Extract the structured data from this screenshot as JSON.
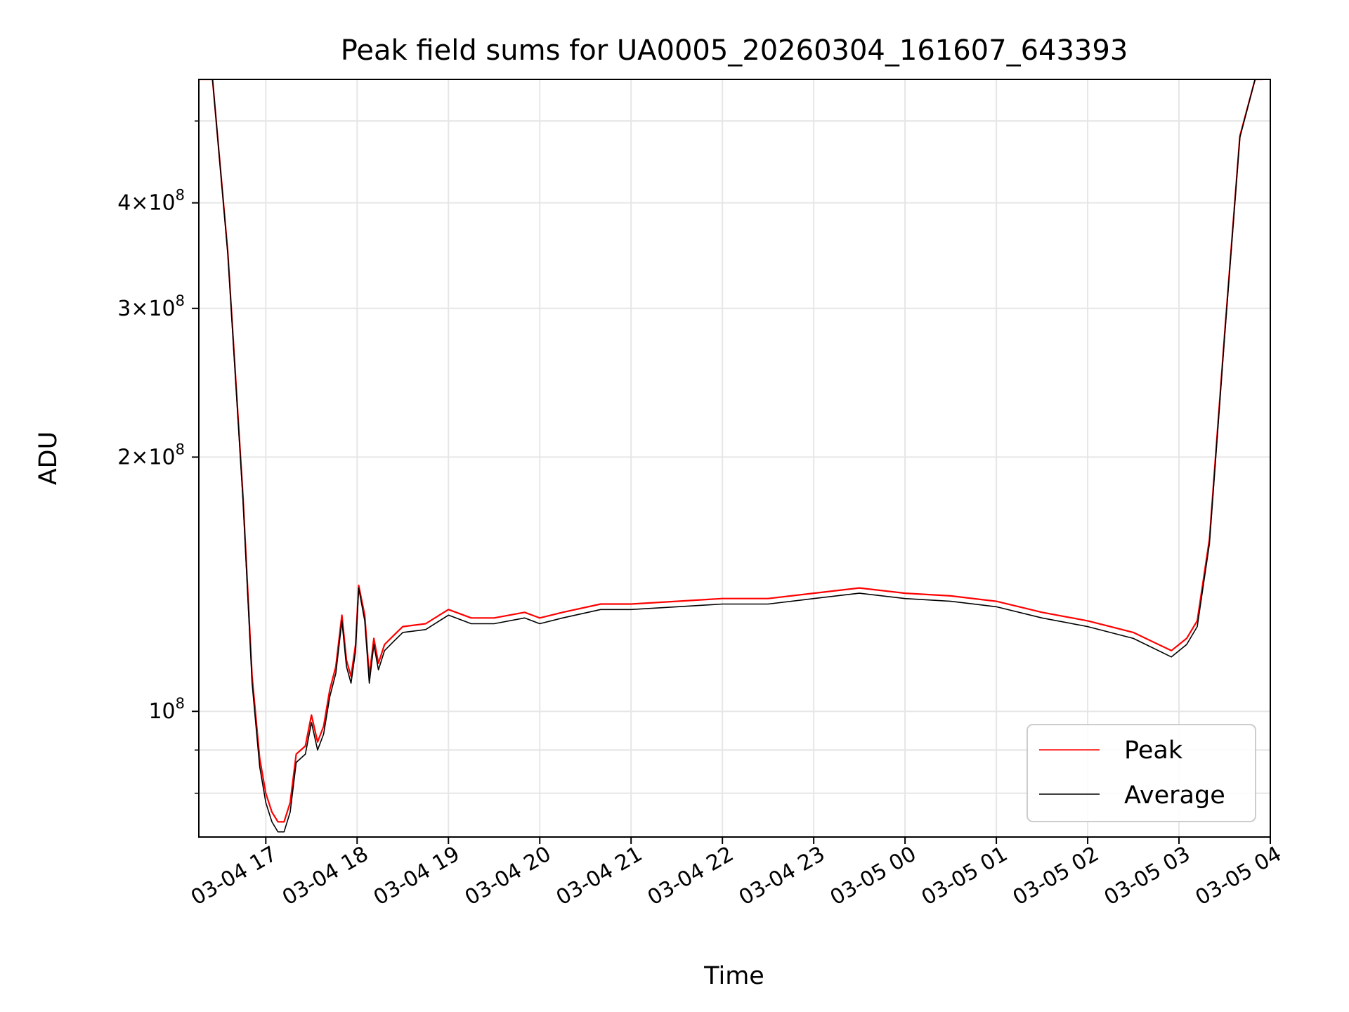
{
  "chart_data": {
    "type": "line",
    "title": "Peak field sums for UA0005_20260304_161607_643393",
    "xlabel": "Time",
    "ylabel": "ADU",
    "x_axis": "time",
    "y_scale": "log",
    "xlim": [
      "2026-03-04 16:16",
      "2026-03-05 04:00"
    ],
    "ylim": [
      71000000,
      560000000
    ],
    "x_ticks": [
      "03-04 17",
      "03-04 18",
      "03-04 19",
      "03-04 20",
      "03-04 21",
      "03-04 22",
      "03-04 23",
      "03-05 00",
      "03-05 01",
      "03-05 02",
      "03-05 03",
      "03-05 04"
    ],
    "x_tick_values": [
      "2026-03-04 17:00",
      "2026-03-04 18:00",
      "2026-03-04 19:00",
      "2026-03-04 20:00",
      "2026-03-04 21:00",
      "2026-03-04 22:00",
      "2026-03-04 23:00",
      "2026-03-05 00:00",
      "2026-03-05 01:00",
      "2026-03-05 02:00",
      "2026-03-05 03:00",
      "2026-03-05 04:00"
    ],
    "y_ticks": [
      {
        "value": 400000000,
        "mant": "4",
        "exp": "8"
      },
      {
        "value": 300000000,
        "mant": "3",
        "exp": "8"
      },
      {
        "value": 200000000,
        "mant": "2",
        "exp": "8"
      },
      {
        "value": 100000000,
        "mant": "",
        "exp": "8"
      }
    ],
    "y_minor_ticks": [
      80000000,
      90000000,
      500000000
    ],
    "grid": true,
    "legend": {
      "position": "lower-right",
      "entries": [
        "Peak",
        "Average"
      ]
    },
    "series": [
      {
        "name": "Peak",
        "color": "#ff0000",
        "x": [
          "2026-03-04 16:16",
          "2026-03-04 16:25",
          "2026-03-04 16:35",
          "2026-03-04 16:45",
          "2026-03-04 16:51",
          "2026-03-04 16:56",
          "2026-03-04 17:00",
          "2026-03-04 17:04",
          "2026-03-04 17:08",
          "2026-03-04 17:12",
          "2026-03-04 17:16",
          "2026-03-04 17:20",
          "2026-03-04 17:26",
          "2026-03-04 17:30",
          "2026-03-04 17:34",
          "2026-03-04 17:38",
          "2026-03-04 17:42",
          "2026-03-04 17:46",
          "2026-03-04 17:50",
          "2026-03-04 17:53",
          "2026-03-04 17:56",
          "2026-03-04 17:59",
          "2026-03-04 18:01",
          "2026-03-04 18:05",
          "2026-03-04 18:08",
          "2026-03-04 18:11",
          "2026-03-04 18:14",
          "2026-03-04 18:18",
          "2026-03-04 18:24",
          "2026-03-04 18:30",
          "2026-03-04 18:45",
          "2026-03-04 19:00",
          "2026-03-04 19:15",
          "2026-03-04 19:30",
          "2026-03-04 19:50",
          "2026-03-04 20:00",
          "2026-03-04 20:15",
          "2026-03-04 20:40",
          "2026-03-04 21:00",
          "2026-03-04 21:30",
          "2026-03-04 22:00",
          "2026-03-04 22:30",
          "2026-03-04 23:00",
          "2026-03-04 23:30",
          "2026-03-05 00:00",
          "2026-03-05 00:30",
          "2026-03-05 01:00",
          "2026-03-05 01:30",
          "2026-03-05 02:00",
          "2026-03-05 02:30",
          "2026-03-05 02:55",
          "2026-03-05 03:05",
          "2026-03-05 03:12",
          "2026-03-05 03:20",
          "2026-03-05 03:30",
          "2026-03-05 03:40",
          "2026-03-05 03:50",
          "2026-03-05 03:55"
        ],
        "values": [
          560000000,
          560000000,
          350000000,
          180000000,
          110000000,
          88000000,
          80000000,
          76000000,
          74000000,
          74000000,
          78000000,
          89000000,
          91000000,
          99000000,
          92000000,
          96000000,
          106000000,
          113000000,
          130000000,
          115000000,
          110000000,
          120000000,
          141000000,
          130000000,
          110000000,
          122000000,
          114000000,
          120000000,
          123000000,
          126000000,
          127000000,
          132000000,
          129000000,
          129000000,
          131000000,
          129000000,
          131000000,
          134000000,
          134000000,
          135000000,
          136000000,
          136000000,
          138000000,
          140000000,
          138000000,
          137000000,
          135000000,
          131000000,
          128000000,
          124000000,
          118000000,
          122000000,
          128000000,
          160000000,
          280000000,
          480000000,
          560000000,
          560000000
        ]
      },
      {
        "name": "Average",
        "color": "#000000",
        "x": [
          "2026-03-04 16:16",
          "2026-03-04 16:25",
          "2026-03-04 16:35",
          "2026-03-04 16:45",
          "2026-03-04 16:51",
          "2026-03-04 16:56",
          "2026-03-04 17:00",
          "2026-03-04 17:04",
          "2026-03-04 17:08",
          "2026-03-04 17:12",
          "2026-03-04 17:16",
          "2026-03-04 17:20",
          "2026-03-04 17:26",
          "2026-03-04 17:30",
          "2026-03-04 17:34",
          "2026-03-04 17:38",
          "2026-03-04 17:42",
          "2026-03-04 17:46",
          "2026-03-04 17:50",
          "2026-03-04 17:53",
          "2026-03-04 17:56",
          "2026-03-04 17:59",
          "2026-03-04 18:01",
          "2026-03-04 18:05",
          "2026-03-04 18:08",
          "2026-03-04 18:11",
          "2026-03-04 18:14",
          "2026-03-04 18:18",
          "2026-03-04 18:24",
          "2026-03-04 18:30",
          "2026-03-04 18:45",
          "2026-03-04 19:00",
          "2026-03-04 19:15",
          "2026-03-04 19:30",
          "2026-03-04 19:50",
          "2026-03-04 20:00",
          "2026-03-04 20:15",
          "2026-03-04 20:40",
          "2026-03-04 21:00",
          "2026-03-04 21:30",
          "2026-03-04 22:00",
          "2026-03-04 22:30",
          "2026-03-04 23:00",
          "2026-03-04 23:30",
          "2026-03-05 00:00",
          "2026-03-05 00:30",
          "2026-03-05 01:00",
          "2026-03-05 01:30",
          "2026-03-05 02:00",
          "2026-03-05 02:30",
          "2026-03-05 02:55",
          "2026-03-05 03:05",
          "2026-03-05 03:12",
          "2026-03-05 03:20",
          "2026-03-05 03:30",
          "2026-03-05 03:40",
          "2026-03-05 03:50",
          "2026-03-05 03:55"
        ],
        "values": [
          560000000,
          560000000,
          348000000,
          178000000,
          108000000,
          86000000,
          78000000,
          74000000,
          72000000,
          72000000,
          76000000,
          87000000,
          89000000,
          97000000,
          90000000,
          94000000,
          104000000,
          111000000,
          128000000,
          113000000,
          108000000,
          118000000,
          140000000,
          128000000,
          108000000,
          120000000,
          112000000,
          118000000,
          121000000,
          124000000,
          125000000,
          130000000,
          127000000,
          127000000,
          129000000,
          127000000,
          129000000,
          132000000,
          132000000,
          133000000,
          134000000,
          134000000,
          136000000,
          138000000,
          136000000,
          135000000,
          133000000,
          129000000,
          126000000,
          122000000,
          116000000,
          120000000,
          126000000,
          158000000,
          278000000,
          478000000,
          560000000,
          560000000
        ]
      }
    ]
  }
}
